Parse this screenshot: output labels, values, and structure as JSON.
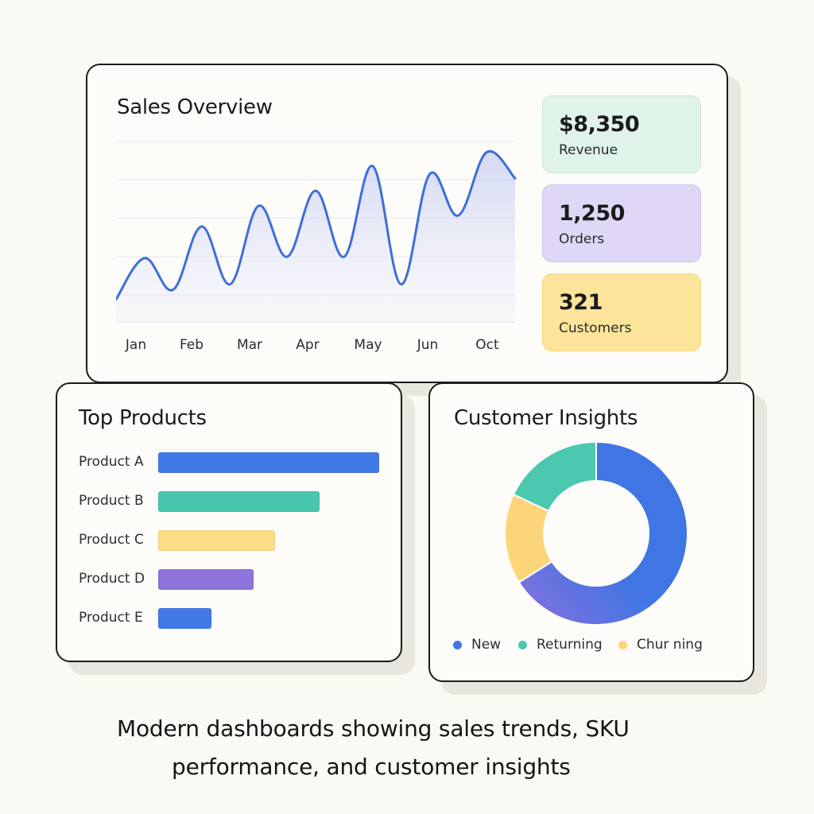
{
  "sales_overview": {
    "title": "Sales Overview",
    "months": [
      "Jan",
      "Feb",
      "Mar",
      "Apr",
      "May",
      "Jun",
      "Oct"
    ],
    "stats": [
      {
        "value": "$8,350",
        "label": "Revenue",
        "color": "#dff3e9"
      },
      {
        "value": "1,250",
        "label": "Orders",
        "color": "#dfd7f5"
      },
      {
        "value": "321",
        "label": "Customers",
        "color": "#fde49b"
      }
    ],
    "line_color": "#3d6fd8"
  },
  "top_products": {
    "title": "Top Products",
    "items": [
      {
        "label": "Product A",
        "value": 100,
        "color": "#4179e6"
      },
      {
        "label": "Product B",
        "value": 73,
        "color": "#47c6ad"
      },
      {
        "label": "Product C",
        "value": 53,
        "color": "#fcdd86"
      },
      {
        "label": "Product D",
        "value": 43,
        "color": "#8e74db"
      },
      {
        "label": "Product E",
        "value": 24,
        "color": "#4179e6"
      }
    ]
  },
  "customer_insights": {
    "title": "Customer Insights",
    "legend": [
      {
        "label": "New",
        "color": "#3f76e4"
      },
      {
        "label": "Returning",
        "color": "#4cc7b0"
      },
      {
        "label": "Chur ning",
        "color": "#fbd578"
      }
    ]
  },
  "caption": {
    "line1": "Modern dashboards showing sales trends, SKU",
    "line2": "performance, and customer insights"
  },
  "chart_data": [
    {
      "type": "line",
      "title": "Sales Overview",
      "x": [
        "",
        "Jan",
        "",
        "Feb",
        "",
        "Mar",
        "",
        "Apr",
        "",
        "May",
        "",
        "Jun",
        "",
        "Oct",
        ""
      ],
      "values": [
        17,
        47,
        24,
        70,
        28,
        85,
        48,
        96,
        48,
        114,
        28,
        108,
        78,
        124,
        105
      ],
      "ylim": [
        0,
        133
      ],
      "grid": true
    },
    {
      "type": "bar",
      "title": "Top Products",
      "categories": [
        "Product A",
        "Product B",
        "Product C",
        "Product D",
        "Product E"
      ],
      "values": [
        100,
        73,
        53,
        43,
        24
      ]
    },
    {
      "type": "pie",
      "title": "Customer Insights",
      "labels": [
        "New",
        "Returning",
        "Chur ning"
      ],
      "values": [
        66,
        18,
        16
      ]
    }
  ]
}
